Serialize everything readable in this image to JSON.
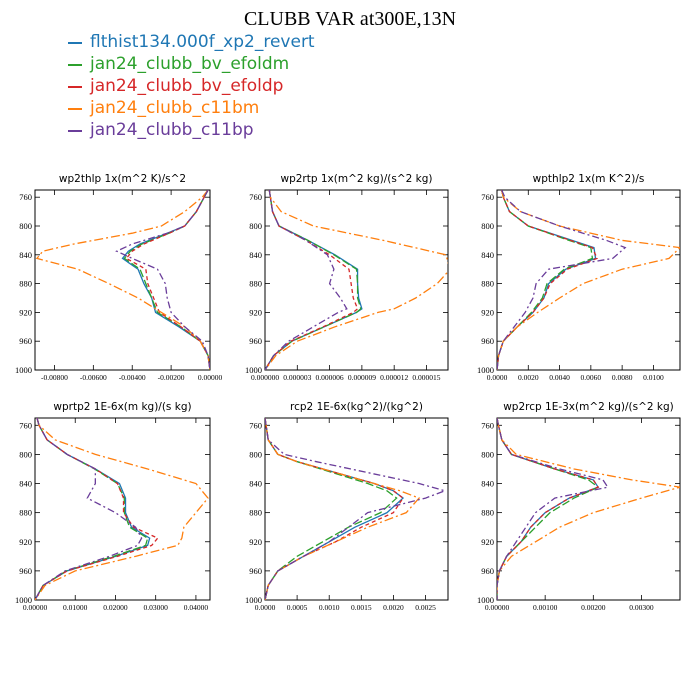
{
  "title": "CLUBB VAR at300E,13N",
  "legend": [
    {
      "label": "flthist134.000f_xp2_revert",
      "color": "#1f77b4"
    },
    {
      "label": "jan24_clubb_bv_efoldm",
      "color": "#2ca02c"
    },
    {
      "label": "jan24_clubb_bv_efoldp",
      "color": "#d62728"
    },
    {
      "label": "jan24_clubb_c11bm",
      "color": "#ff7f0e"
    },
    {
      "label": "jan24_clubb_c11bp",
      "color": "#6a3d9a"
    }
  ],
  "chart_data": [
    {
      "type": "line",
      "title": "wp2thlp  1x(m^2 K)/s^2",
      "xlim": [
        -0.009,
        0.0
      ],
      "ylim": [
        1000,
        750
      ],
      "y_reversed": true,
      "xticks": [
        -0.008,
        -0.006,
        -0.004,
        -0.002,
        0.0
      ],
      "xtick_labels": [
        "-0.00800",
        "-0.00600",
        "-0.00400",
        "-0.00200",
        "0.00000"
      ],
      "yticks": [
        760,
        800,
        840,
        880,
        920,
        960,
        1000
      ],
      "y": [
        750,
        760,
        780,
        800,
        810,
        825,
        835,
        845,
        860,
        880,
        900,
        920,
        940,
        960,
        980,
        1000
      ],
      "series": [
        {
          "values": [
            -0.0001,
            -0.0003,
            -0.0007,
            -0.0013,
            -0.0022,
            -0.0036,
            -0.0042,
            -0.0045,
            -0.0037,
            -0.0034,
            -0.003,
            -0.0028,
            -0.0016,
            -0.0005,
            -0.0001,
            0.0
          ]
        },
        {
          "values": [
            -0.0001,
            -0.0003,
            -0.0007,
            -0.0013,
            -0.0021,
            -0.0035,
            -0.0041,
            -0.0044,
            -0.0036,
            -0.0033,
            -0.003,
            -0.0027,
            -0.0015,
            -0.0005,
            -0.0001,
            0.0
          ]
        },
        {
          "values": [
            -0.0001,
            -0.0003,
            -0.0007,
            -0.0013,
            -0.0021,
            -0.0034,
            -0.004,
            -0.0043,
            -0.0033,
            -0.0032,
            -0.0029,
            -0.0026,
            -0.0015,
            -0.0005,
            -0.0001,
            0.0
          ]
        },
        {
          "values": [
            -0.0001,
            -0.0004,
            -0.0013,
            -0.0025,
            -0.004,
            -0.007,
            -0.0086,
            -0.0089,
            -0.0068,
            -0.0052,
            -0.0037,
            -0.0025,
            -0.0013,
            -0.0005,
            -0.0001,
            0.0
          ]
        },
        {
          "values": [
            -0.0001,
            -0.0003,
            -0.0007,
            -0.0013,
            -0.0022,
            -0.004,
            -0.0048,
            -0.004,
            -0.0027,
            -0.0023,
            -0.0022,
            -0.002,
            -0.0013,
            -0.0004,
            -0.0001,
            0.0
          ]
        }
      ]
    },
    {
      "type": "line",
      "title": "wp2rtp  1x(m^2 kg)/(s^2 kg)",
      "xlim": [
        0.0,
        1.7e-05
      ],
      "ylim": [
        1000,
        750
      ],
      "y_reversed": true,
      "xticks": [
        0.0,
        3e-06,
        6e-06,
        9e-06,
        1.2e-05,
        1.5e-05
      ],
      "xtick_labels": [
        "0.000000",
        "0.000003",
        "0.000006",
        "0.000009",
        "0.000012",
        "0.000015"
      ],
      "yticks": [
        760,
        800,
        840,
        880,
        920,
        960,
        1000
      ],
      "y": [
        750,
        760,
        780,
        800,
        820,
        840,
        860,
        880,
        900,
        915,
        920,
        940,
        960,
        980,
        1000
      ],
      "series": [
        {
          "values": [
            4e-07,
            5e-07,
            7e-07,
            1.3e-06,
            4e-06,
            6.5e-06,
            8.6e-06,
            8.6e-06,
            8.7e-06,
            9e-06,
            8.5e-06,
            5.5e-06,
            2.5e-06,
            8e-07,
            0.0
          ]
        },
        {
          "values": [
            4e-07,
            5e-07,
            7e-07,
            1.3e-06,
            4e-06,
            6.4e-06,
            8.5e-06,
            8.6e-06,
            8.6e-06,
            8.9e-06,
            8.5e-06,
            5.5e-06,
            2.5e-06,
            8e-07,
            0.0
          ]
        },
        {
          "values": [
            4e-07,
            5e-07,
            7e-07,
            1.3e-06,
            3.8e-06,
            6e-06,
            7.8e-06,
            8e-06,
            8.2e-06,
            8.6e-06,
            8.2e-06,
            5.4e-06,
            2.4e-06,
            8e-07,
            0.0
          ]
        },
        {
          "values": [
            4e-07,
            5e-07,
            1.5e-06,
            4.5e-06,
            1.1e-05,
            1.68e-05,
            1.72e-05,
            1.6e-05,
            1.4e-05,
            1.2e-05,
            1.05e-05,
            6.5e-06,
            3e-06,
            1e-06,
            0.0
          ]
        },
        {
          "values": [
            4e-07,
            5e-07,
            7e-07,
            1.3e-06,
            3.8e-06,
            5.8e-06,
            6.4e-06,
            6e-06,
            7e-06,
            7.6e-06,
            6.8e-06,
            4.5e-06,
            2.2e-06,
            8e-07,
            0.0
          ]
        }
      ]
    },
    {
      "type": "line",
      "title": "wpthlp2  1x(m K^2)/s",
      "xlim": [
        0.0,
        0.0117
      ],
      "ylim": [
        1000,
        750
      ],
      "y_reversed": true,
      "xticks": [
        0.0,
        0.002,
        0.004,
        0.006,
        0.008,
        0.01
      ],
      "xtick_labels": [
        "0.0000",
        "0.0020",
        "0.0040",
        "0.0060",
        "0.0080",
        "0.0100"
      ],
      "yticks": [
        760,
        800,
        840,
        880,
        920,
        960,
        1000
      ],
      "y": [
        750,
        760,
        780,
        800,
        820,
        830,
        845,
        860,
        880,
        900,
        920,
        940,
        960,
        980,
        1000
      ],
      "series": [
        {
          "values": [
            0.0003,
            0.0004,
            0.0008,
            0.002,
            0.0048,
            0.0062,
            0.0063,
            0.0044,
            0.0033,
            0.003,
            0.0023,
            0.0013,
            0.0004,
            0.0001,
            0.0
          ]
        },
        {
          "values": [
            0.0003,
            0.0004,
            0.0008,
            0.002,
            0.0046,
            0.006,
            0.0061,
            0.0043,
            0.0032,
            0.0029,
            0.0022,
            0.0013,
            0.0004,
            0.0001,
            0.0
          ]
        },
        {
          "values": [
            0.0003,
            0.0004,
            0.0008,
            0.002,
            0.0047,
            0.0061,
            0.0064,
            0.0045,
            0.0034,
            0.003,
            0.0023,
            0.0013,
            0.0004,
            0.0001,
            0.0
          ]
        },
        {
          "values": [
            0.0003,
            0.0004,
            0.0015,
            0.004,
            0.008,
            0.0117,
            0.011,
            0.008,
            0.0055,
            0.004,
            0.0026,
            0.0013,
            0.0004,
            0.0001,
            0.0
          ]
        },
        {
          "values": [
            0.0003,
            0.0005,
            0.0015,
            0.004,
            0.007,
            0.0082,
            0.0074,
            0.0033,
            0.0025,
            0.0023,
            0.0018,
            0.0011,
            0.0004,
            0.0001,
            0.0
          ]
        }
      ]
    },
    {
      "type": "line",
      "title": "wprtp2  1E-6x(m kg)/(s kg)",
      "xlim": [
        0.0,
        0.0435
      ],
      "ylim": [
        1000,
        750
      ],
      "y_reversed": true,
      "xticks": [
        0.0,
        0.01,
        0.02,
        0.03,
        0.04
      ],
      "xtick_labels": [
        "0.00000",
        "0.01000",
        "0.02000",
        "0.03000",
        "0.04000"
      ],
      "yticks": [
        760,
        800,
        840,
        880,
        920,
        960,
        1000
      ],
      "y": [
        750,
        760,
        780,
        800,
        820,
        840,
        860,
        880,
        900,
        915,
        925,
        940,
        960,
        980,
        1000
      ],
      "series": [
        {
          "values": [
            0.0005,
            0.001,
            0.003,
            0.008,
            0.015,
            0.021,
            0.0225,
            0.0225,
            0.024,
            0.0285,
            0.028,
            0.02,
            0.008,
            0.002,
            0.0
          ]
        },
        {
          "values": [
            0.0005,
            0.001,
            0.003,
            0.008,
            0.0148,
            0.0205,
            0.0222,
            0.0222,
            0.0235,
            0.028,
            0.0275,
            0.0195,
            0.0078,
            0.002,
            0.0
          ]
        },
        {
          "values": [
            0.0005,
            0.001,
            0.003,
            0.008,
            0.015,
            0.0205,
            0.022,
            0.022,
            0.0245,
            0.0305,
            0.029,
            0.0205,
            0.008,
            0.002,
            0.0
          ]
        },
        {
          "values": [
            0.0005,
            0.001,
            0.005,
            0.015,
            0.028,
            0.04,
            0.043,
            0.04,
            0.037,
            0.0365,
            0.0355,
            0.025,
            0.01,
            0.0025,
            0.0
          ]
        },
        {
          "values": [
            0.0005,
            0.001,
            0.003,
            0.008,
            0.015,
            0.015,
            0.013,
            0.02,
            0.025,
            0.0265,
            0.0255,
            0.0185,
            0.0075,
            0.002,
            0.0
          ]
        }
      ]
    },
    {
      "type": "line",
      "title": "rcp2  1E-6x(kg^2)/(kg^2)",
      "xlim": [
        0.0,
        0.00285
      ],
      "ylim": [
        1000,
        750
      ],
      "y_reversed": true,
      "xticks": [
        0.0,
        0.0005,
        0.001,
        0.0015,
        0.002,
        0.0025
      ],
      "xtick_labels": [
        "0.0000",
        "0.0005",
        "0.0010",
        "0.0015",
        "0.0020",
        "0.0025"
      ],
      "yticks": [
        760,
        800,
        840,
        880,
        920,
        960,
        1000
      ],
      "y": [
        750,
        780,
        800,
        810,
        840,
        850,
        860,
        880,
        900,
        920,
        940,
        960,
        980,
        1000
      ],
      "series": [
        {
          "values": [
            0.0,
            5e-05,
            0.0002,
            0.0005,
            0.0017,
            0.002,
            0.00215,
            0.0019,
            0.0014,
            0.001,
            0.0006,
            0.0002,
            5e-05,
            0.0
          ]
        },
        {
          "values": [
            0.0,
            5e-05,
            0.0002,
            0.0005,
            0.0016,
            0.0019,
            0.00205,
            0.0018,
            0.0013,
            0.0009,
            0.0005,
            0.0002,
            5e-05,
            0.0
          ]
        },
        {
          "values": [
            0.0,
            5e-05,
            0.0002,
            0.0005,
            0.0017,
            0.002,
            0.00215,
            0.002,
            0.0015,
            0.0011,
            0.0006,
            0.0002,
            5e-05,
            0.0
          ]
        },
        {
          "values": [
            0.0,
            5e-05,
            0.0002,
            0.0005,
            0.0017,
            0.0021,
            0.0024,
            0.0022,
            0.0016,
            0.0011,
            0.0006,
            0.0002,
            5e-05,
            0.0
          ]
        },
        {
          "values": [
            0.0,
            5e-05,
            0.0003,
            0.0008,
            0.0024,
            0.0028,
            0.0025,
            0.0016,
            0.0013,
            0.001,
            0.0006,
            0.0002,
            5e-05,
            0.0
          ]
        }
      ]
    },
    {
      "type": "line",
      "title": "wp2rcp  1E-3x(m^2 kg)/(s^2 kg)",
      "xlim": [
        0.0,
        0.0038
      ],
      "ylim": [
        1000,
        750
      ],
      "y_reversed": true,
      "xticks": [
        0.0,
        0.001,
        0.002,
        0.003
      ],
      "xtick_labels": [
        "0.00000",
        "0.00100",
        "0.00200",
        "0.00300"
      ],
      "yticks": [
        760,
        800,
        840,
        880,
        920,
        960,
        1000
      ],
      "y": [
        750,
        760,
        780,
        800,
        820,
        835,
        845,
        860,
        880,
        900,
        920,
        940,
        960,
        980,
        1000
      ],
      "series": [
        {
          "values": [
            0.0,
            3e-05,
            0.0001,
            0.0003,
            0.0012,
            0.002,
            0.0021,
            0.0015,
            0.001,
            0.0007,
            0.0005,
            0.0002,
            5e-05,
            0.0,
            0.0
          ]
        },
        {
          "values": [
            0.0,
            3e-05,
            0.0001,
            0.0003,
            0.0012,
            0.0019,
            0.0021,
            0.0016,
            0.0011,
            0.0008,
            0.0005,
            0.0002,
            5e-05,
            0.0,
            0.0
          ]
        },
        {
          "values": [
            0.0,
            3e-05,
            0.0001,
            0.0003,
            0.0012,
            0.002,
            0.0021,
            0.0015,
            0.001,
            0.0007,
            0.0005,
            0.0002,
            5e-05,
            0.0,
            0.0
          ]
        },
        {
          "values": [
            0.0,
            3e-05,
            0.0001,
            0.0004,
            0.0016,
            0.0028,
            0.0038,
            0.003,
            0.002,
            0.0013,
            0.0008,
            0.0003,
            5e-05,
            0.0,
            0.0
          ]
        },
        {
          "values": [
            0.0,
            3e-05,
            0.0001,
            0.0003,
            0.0013,
            0.0022,
            0.0023,
            0.0012,
            0.0008,
            0.0006,
            0.0004,
            0.0002,
            5e-05,
            0.0,
            0.0
          ]
        }
      ]
    }
  ]
}
